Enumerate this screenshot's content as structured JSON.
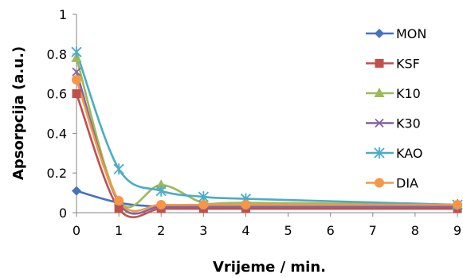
{
  "chart_data": {
    "type": "line",
    "xlabel": "Vrijeme / min.",
    "ylabel": "Apsorpcija (a.u.)",
    "x_ticks": [
      "0",
      "1",
      "2",
      "3",
      "4",
      "5",
      "6",
      "7",
      "8",
      "9"
    ],
    "y_ticks": [
      "0",
      "0.2",
      "0.4",
      "0.6",
      "0.8",
      "1"
    ],
    "xlim": [
      0,
      9
    ],
    "ylim": [
      0,
      1
    ],
    "grid": false,
    "legend_position": "right",
    "smooth": true,
    "series": [
      {
        "name": "MON",
        "color": "#4472C4",
        "marker": "diamond",
        "x": [
          0,
          1,
          2,
          3,
          4,
          9
        ],
        "y": [
          0.11,
          0.05,
          0.03,
          0.03,
          0.03,
          0.03
        ]
      },
      {
        "name": "KSF",
        "color": "#C0504D",
        "marker": "square",
        "x": [
          0,
          1,
          2,
          3,
          4,
          9
        ],
        "y": [
          0.6,
          0.02,
          0.02,
          0.02,
          0.02,
          0.02
        ]
      },
      {
        "name": "K10",
        "color": "#9BBB59",
        "marker": "triangle",
        "x": [
          0,
          1,
          2,
          3,
          4,
          9
        ],
        "y": [
          0.78,
          0.06,
          0.14,
          0.05,
          0.05,
          0.04
        ]
      },
      {
        "name": "K30",
        "color": "#8064A2",
        "marker": "x",
        "x": [
          0,
          1,
          2,
          3,
          4,
          9
        ],
        "y": [
          0.71,
          0.05,
          0.03,
          0.03,
          0.03,
          0.03
        ]
      },
      {
        "name": "KAO",
        "color": "#4BACC6",
        "marker": "star",
        "x": [
          0,
          1,
          2,
          3,
          4,
          9
        ],
        "y": [
          0.81,
          0.22,
          0.11,
          0.08,
          0.07,
          0.04
        ]
      },
      {
        "name": "DIA",
        "color": "#F79646",
        "marker": "circle",
        "x": [
          0,
          1,
          2,
          3,
          4,
          9
        ],
        "y": [
          0.67,
          0.06,
          0.04,
          0.04,
          0.04,
          0.04
        ]
      }
    ]
  }
}
